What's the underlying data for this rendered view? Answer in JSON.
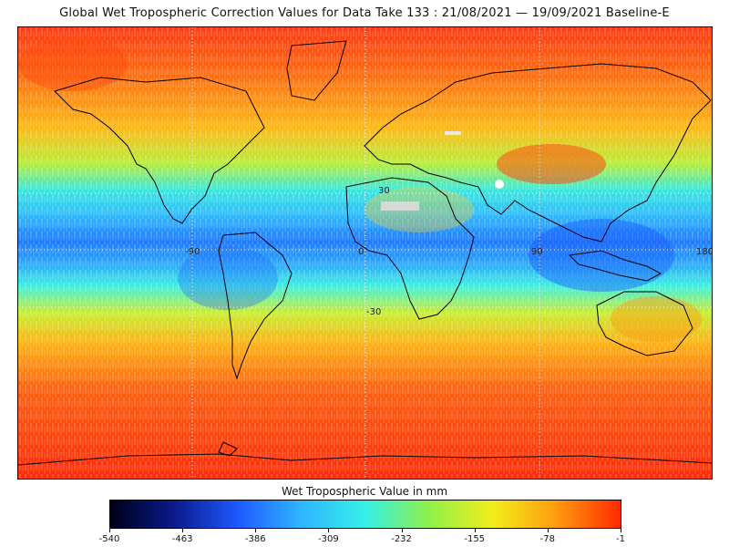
{
  "header": {
    "title": "Global Wet Tropospheric Correction Values for Data Take 133 : 21/08/2021 — 19/09/2021 Baseline-E"
  },
  "map": {
    "latitude_labels": [
      "30",
      "0",
      "-30"
    ],
    "longitude_labels": [
      "-90",
      "0",
      "90",
      "180"
    ],
    "land_outline_color": "#000000",
    "gridline_style": "dotted white"
  },
  "colorbar": {
    "title": "Wet Tropospheric Value in mm",
    "tick_labels": [
      "-540",
      "-463",
      "-386",
      "-309",
      "-232",
      "-155",
      "-78",
      "-1"
    ],
    "min": -540,
    "max": -1,
    "colors": [
      "#000018",
      "#0a1a8c",
      "#1e5aff",
      "#2fb6ff",
      "#35f0e6",
      "#8ff04a",
      "#f2ee1a",
      "#ff9a10",
      "#ff2a00"
    ]
  }
}
